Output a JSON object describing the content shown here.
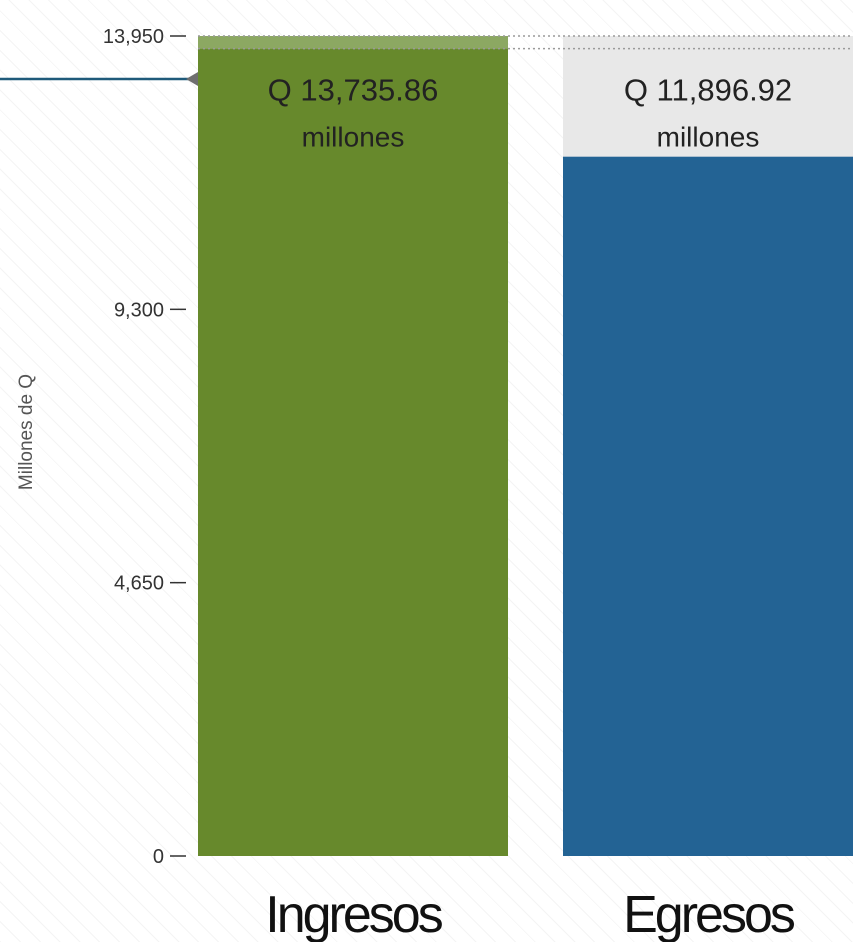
{
  "chart_data": {
    "type": "bar",
    "categories": [
      "Ingresos",
      "Egresos"
    ],
    "values": [
      13735.86,
      11896.92
    ],
    "value_labels": [
      "Q 13,735.86",
      "Q 11,896.92"
    ],
    "value_unit_label": "millones",
    "ylabel": "Millones de Q",
    "ylim": [
      0,
      13950
    ],
    "yticks": [
      0,
      4650,
      9300,
      13950
    ],
    "ytick_labels": [
      "0",
      "4,650",
      "9,300",
      "13,950"
    ],
    "reference_value": 13735.86,
    "colors": {
      "Ingresos": "#67892c",
      "Egresos": "#236394",
      "Ingresos_headroom": "#8ca862",
      "Egresos_headroom": "#e8e8e8",
      "reference_line": "#1f5a7a",
      "marker": "#6f6f6f"
    },
    "grid": false
  }
}
